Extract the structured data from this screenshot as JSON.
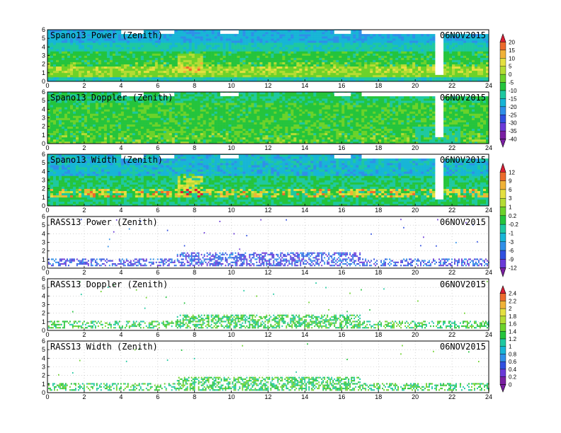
{
  "chart_data": [
    {
      "type": "heatmap",
      "title": "Spano13 Power (Zenith)",
      "date": "06NOV2015",
      "x_ticks": [
        "0",
        "2",
        "4",
        "6",
        "8",
        "10",
        "12",
        "14",
        "16",
        "18",
        "20",
        "22",
        "24"
      ],
      "y_ticks": [
        "0",
        "1",
        "2",
        "3",
        "4",
        "5",
        "6"
      ],
      "xlim": [
        0,
        24
      ],
      "ylim": [
        0,
        6
      ],
      "grid": true,
      "colorbar": {
        "labels": [
          "20",
          "15",
          "10",
          "5",
          "0",
          "-5",
          "-10",
          "-15",
          "-20",
          "-25",
          "-30",
          "-35",
          "-40"
        ]
      }
    },
    {
      "type": "heatmap",
      "title": "Spano13 Doppler (Zenith)",
      "date": "06NOV2015",
      "x_ticks": [
        "0",
        "2",
        "4",
        "6",
        "8",
        "10",
        "12",
        "14",
        "16",
        "18",
        "20",
        "22",
        "24"
      ],
      "y_ticks": [
        "0",
        "1",
        "2",
        "3",
        "4",
        "5",
        "6"
      ],
      "xlim": [
        0,
        24
      ],
      "ylim": [
        0,
        6
      ],
      "grid": true
    },
    {
      "type": "heatmap",
      "title": "Spano13 Width (Zenith)",
      "date": "06NOV2015",
      "x_ticks": [
        "0",
        "2",
        "4",
        "6",
        "8",
        "10",
        "12",
        "14",
        "16",
        "18",
        "20",
        "22",
        "24"
      ],
      "y_ticks": [
        "0",
        "1",
        "2",
        "3",
        "4",
        "5",
        "6"
      ],
      "xlim": [
        0,
        24
      ],
      "ylim": [
        0,
        6
      ],
      "grid": true,
      "colorbar": {
        "labels": [
          "12",
          "9",
          "6",
          "3",
          "1",
          "0.2",
          "-0.2",
          "-1",
          "-3",
          "-6",
          "-9",
          "-12"
        ]
      }
    },
    {
      "type": "heatmap",
      "title": "RASS13 Power (Zenith)",
      "date": "06NOV2015",
      "x_ticks": [
        "0",
        "2",
        "4",
        "6",
        "8",
        "10",
        "12",
        "14",
        "16",
        "18",
        "20",
        "22",
        "24"
      ],
      "y_ticks": [
        "0",
        "1",
        "2",
        "3",
        "4",
        "5",
        "6"
      ],
      "xlim": [
        0,
        24
      ],
      "ylim": [
        0,
        6
      ],
      "grid": true
    },
    {
      "type": "heatmap",
      "title": "RASS13 Doppler (Zenith)",
      "date": "06NOV2015",
      "x_ticks": [
        "0",
        "2",
        "4",
        "6",
        "8",
        "10",
        "12",
        "14",
        "16",
        "18",
        "20",
        "22",
        "24"
      ],
      "y_ticks": [
        "0",
        "1",
        "2",
        "3",
        "4",
        "5",
        "6"
      ],
      "xlim": [
        0,
        24
      ],
      "ylim": [
        0,
        6
      ],
      "grid": true,
      "colorbar": {
        "labels": [
          "2.4",
          "2.2",
          "2",
          "1.8",
          "1.6",
          "1.4",
          "1.2",
          "1",
          "0.8",
          "0.6",
          "0.4",
          "0.2",
          "0"
        ]
      }
    },
    {
      "type": "heatmap",
      "title": "RASS13 Width (Zenith)",
      "date": "06NOV2015",
      "x_ticks": [
        "0",
        "2",
        "4",
        "6",
        "8",
        "10",
        "12",
        "14",
        "16",
        "18",
        "20",
        "22",
        "24"
      ],
      "y_ticks": [
        "0",
        "1",
        "2",
        "3",
        "4",
        "5",
        "6"
      ],
      "xlim": [
        0,
        24
      ],
      "ylim": [
        0,
        6
      ],
      "grid": true
    }
  ],
  "palette": [
    "#7a1fa2",
    "#6a3ad8",
    "#3050e0",
    "#2f8fe8",
    "#17b5d6",
    "#1ec8a0",
    "#24c43c",
    "#6cd22a",
    "#b4dc34",
    "#e4e040",
    "#f0b238",
    "#ec6a2c",
    "#dc1e36"
  ]
}
